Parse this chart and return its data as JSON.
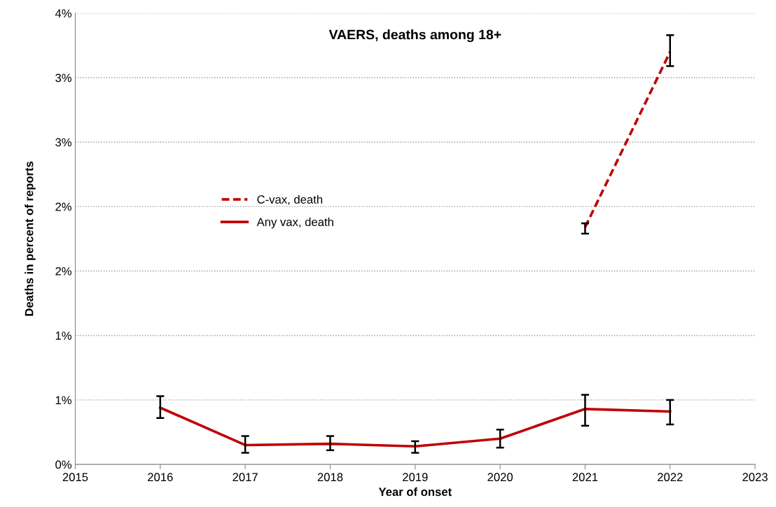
{
  "chart_data": {
    "type": "line",
    "title": "VAERS, deaths among 18+",
    "xlabel": "Year of onset",
    "ylabel": "Deaths in percent of reports",
    "x": [
      2016,
      2017,
      2018,
      2019,
      2020,
      2021,
      2022
    ],
    "series": [
      {
        "name": "C-vax, death",
        "color": "#c00000",
        "line_style": "dashed",
        "values": [
          null,
          null,
          null,
          null,
          null,
          1.84,
          3.2
        ],
        "errors": [
          null,
          null,
          null,
          null,
          null,
          [
            1.79,
            1.87
          ],
          [
            3.09,
            3.33
          ]
        ]
      },
      {
        "name": "Any vax, death",
        "color": "#c00000",
        "line_style": "solid",
        "values": [
          0.44,
          0.15,
          0.16,
          0.14,
          0.2,
          0.43,
          0.41
        ],
        "errors": [
          [
            0.36,
            0.53
          ],
          [
            0.09,
            0.22
          ],
          [
            0.11,
            0.22
          ],
          [
            0.09,
            0.18
          ],
          [
            0.13,
            0.27
          ],
          [
            0.3,
            0.54
          ],
          [
            0.31,
            0.5
          ]
        ]
      }
    ],
    "xlim": [
      2015,
      2023
    ],
    "xticks": [
      2015,
      2016,
      2017,
      2018,
      2019,
      2020,
      2021,
      2022,
      2023
    ],
    "ylim": [
      0,
      3.5
    ],
    "yticks": [
      {
        "value": 0,
        "label": "0%"
      },
      {
        "value": 0.5,
        "label": "1%"
      },
      {
        "value": 1,
        "label": "1%"
      },
      {
        "value": 1.5,
        "label": "2%"
      },
      {
        "value": 2,
        "label": "2%"
      },
      {
        "value": 2.5,
        "label": "3%"
      },
      {
        "value": 3,
        "label": "3%"
      },
      {
        "value": 3.5,
        "label": "4%"
      }
    ],
    "grid": "y",
    "legend": "center left",
    "marker": "none"
  }
}
